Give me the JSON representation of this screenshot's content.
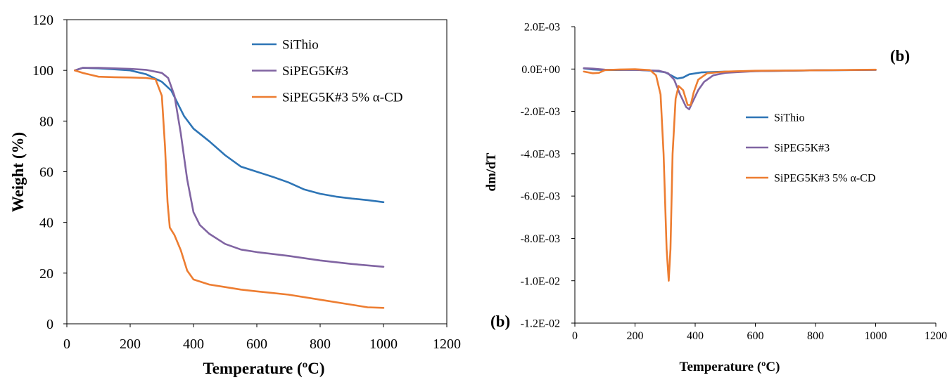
{
  "colors": {
    "blue": "#2E75B6",
    "purple": "#8064A2",
    "orange": "#ED7D31"
  },
  "chart_data": [
    {
      "type": "line",
      "title": "",
      "xlabel": "Temperature (ºC)",
      "ylabel": "Weight (%)",
      "xlim": [
        0,
        1200
      ],
      "ylim": [
        0,
        120
      ],
      "xticks": [
        "0",
        "200",
        "400",
        "600",
        "800",
        "1000",
        "1200"
      ],
      "yticks": [
        "0",
        "20",
        "40",
        "60",
        "80",
        "100",
        "120"
      ],
      "grid": false,
      "legend_position": "top-right",
      "series": [
        {
          "name": "SiThio",
          "color": "#2E75B6",
          "points": [
            [
              25,
              100
            ],
            [
              50,
              101
            ],
            [
              100,
              100.8
            ],
            [
              150,
              100.4
            ],
            [
              200,
              100
            ],
            [
              250,
              98.5
            ],
            [
              300,
              95.5
            ],
            [
              330,
              92
            ],
            [
              350,
              87
            ],
            [
              370,
              82
            ],
            [
              400,
              77
            ],
            [
              450,
              72
            ],
            [
              500,
              66.5
            ],
            [
              550,
              62
            ],
            [
              600,
              60
            ],
            [
              650,
              58
            ],
            [
              700,
              55.8
            ],
            [
              750,
              53
            ],
            [
              800,
              51.3
            ],
            [
              850,
              50.2
            ],
            [
              900,
              49.4
            ],
            [
              950,
              48.8
            ],
            [
              1000,
              48
            ]
          ]
        },
        {
          "name": "SiPEG5K#3",
          "color": "#8064A2",
          "points": [
            [
              25,
              100
            ],
            [
              50,
              101
            ],
            [
              100,
              101
            ],
            [
              150,
              100.8
            ],
            [
              200,
              100.6
            ],
            [
              250,
              100.2
            ],
            [
              300,
              99
            ],
            [
              320,
              97
            ],
            [
              340,
              90
            ],
            [
              360,
              75
            ],
            [
              380,
              57
            ],
            [
              400,
              44
            ],
            [
              420,
              39
            ],
            [
              450,
              35.5
            ],
            [
              500,
              31.5
            ],
            [
              550,
              29.3
            ],
            [
              600,
              28.3
            ],
            [
              700,
              26.8
            ],
            [
              800,
              25
            ],
            [
              900,
              23.6
            ],
            [
              1000,
              22.5
            ]
          ]
        },
        {
          "name": "SiPEG5K#3 5% α-CD",
          "color": "#ED7D31",
          "points": [
            [
              25,
              100
            ],
            [
              50,
              99
            ],
            [
              100,
              97.5
            ],
            [
              150,
              97.3
            ],
            [
              200,
              97.2
            ],
            [
              250,
              97
            ],
            [
              280,
              96.5
            ],
            [
              300,
              90
            ],
            [
              310,
              70
            ],
            [
              318,
              48
            ],
            [
              325,
              38
            ],
            [
              340,
              35
            ],
            [
              360,
              29
            ],
            [
              380,
              21
            ],
            [
              400,
              17.5
            ],
            [
              450,
              15.5
            ],
            [
              500,
              14.5
            ],
            [
              550,
              13.5
            ],
            [
              600,
              12.8
            ],
            [
              700,
              11.5
            ],
            [
              800,
              9.5
            ],
            [
              900,
              7.5
            ],
            [
              950,
              6.5
            ],
            [
              1000,
              6.3
            ]
          ]
        }
      ]
    },
    {
      "type": "line",
      "title": "",
      "xlabel": "Temperature (ºC)",
      "ylabel": "dm/dT",
      "xlim": [
        0,
        1200
      ],
      "ylim": [
        -0.012,
        0.002
      ],
      "xticks": [
        "0",
        "200",
        "400",
        "600",
        "800",
        "1000",
        "1200"
      ],
      "yticks": [
        "2.0E-03",
        "0.0E+00",
        "-2.0E-03",
        "-4.0E-03",
        "-6.0E-03",
        "-8.0E-03",
        "-1.0E-02",
        "-1.2E-02"
      ],
      "grid": false,
      "legend_position": "center-right",
      "annotations": [
        "(b)",
        "(b)"
      ],
      "series": [
        {
          "name": "SiThio",
          "color": "#2E75B6",
          "points": [
            [
              30,
              3e-05
            ],
            [
              60,
              -2e-05
            ],
            [
              100,
              -5e-05
            ],
            [
              200,
              -4e-05
            ],
            [
              260,
              -8e-05
            ],
            [
              300,
              -0.00015
            ],
            [
              320,
              -0.0003
            ],
            [
              340,
              -0.00045
            ],
            [
              360,
              -0.0004
            ],
            [
              380,
              -0.00025
            ],
            [
              420,
              -0.00016
            ],
            [
              500,
              -0.00012
            ],
            [
              600,
              -0.0001
            ],
            [
              700,
              -8e-05
            ],
            [
              800,
              -6e-05
            ],
            [
              900,
              -5e-05
            ],
            [
              1000,
              -4e-05
            ]
          ]
        },
        {
          "name": "SiPEG5K#3",
          "color": "#8064A2",
          "points": [
            [
              30,
              4e-05
            ],
            [
              60,
              2e-05
            ],
            [
              100,
              -3e-05
            ],
            [
              200,
              -4e-05
            ],
            [
              280,
              -8e-05
            ],
            [
              310,
              -0.0002
            ],
            [
              330,
              -0.0005
            ],
            [
              350,
              -0.0012
            ],
            [
              370,
              -0.0018
            ],
            [
              380,
              -0.0019
            ],
            [
              390,
              -0.0016
            ],
            [
              410,
              -0.001
            ],
            [
              430,
              -0.0006
            ],
            [
              460,
              -0.0003
            ],
            [
              500,
              -0.00018
            ],
            [
              600,
              -0.0001
            ],
            [
              800,
              -6e-05
            ],
            [
              1000,
              -4e-05
            ]
          ]
        },
        {
          "name": "SiPEG5K#3 5% α-CD",
          "color": "#ED7D31",
          "points": [
            [
              30,
              -0.00012
            ],
            [
              60,
              -0.0002
            ],
            [
              80,
              -0.00018
            ],
            [
              100,
              -5e-05
            ],
            [
              150,
              -2e-05
            ],
            [
              200,
              -1e-05
            ],
            [
              250,
              -5e-05
            ],
            [
              270,
              -0.0003
            ],
            [
              285,
              -0.0012
            ],
            [
              295,
              -0.004
            ],
            [
              305,
              -0.0085
            ],
            [
              312,
              -0.01
            ],
            [
              318,
              -0.0085
            ],
            [
              325,
              -0.004
            ],
            [
              335,
              -0.0014
            ],
            [
              345,
              -0.0008
            ],
            [
              360,
              -0.001
            ],
            [
              375,
              -0.0017
            ],
            [
              385,
              -0.0017
            ],
            [
              395,
              -0.0011
            ],
            [
              410,
              -0.0005
            ],
            [
              440,
              -0.0002
            ],
            [
              500,
              -0.00012
            ],
            [
              600,
              -8e-05
            ],
            [
              800,
              -6e-05
            ],
            [
              1000,
              -3e-05
            ]
          ]
        }
      ]
    }
  ]
}
